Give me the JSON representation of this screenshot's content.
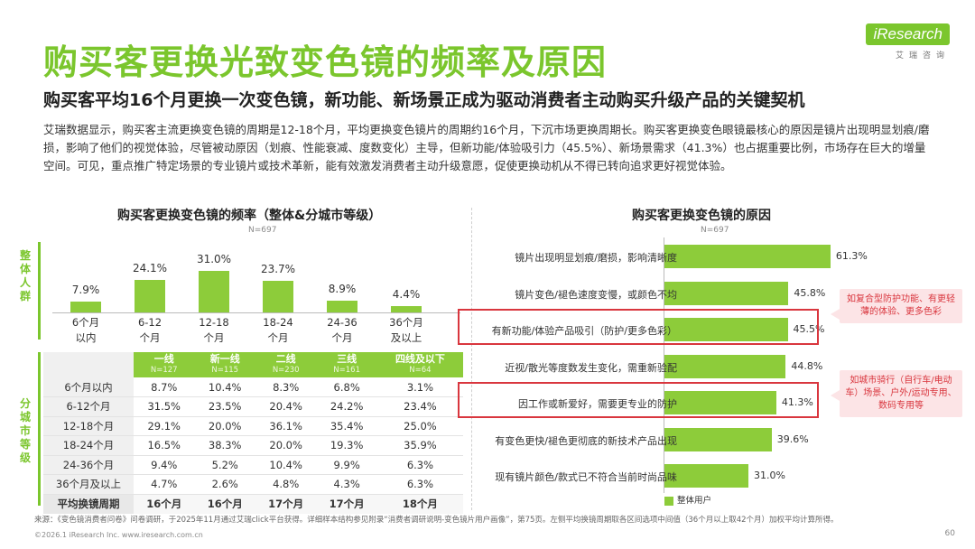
{
  "header": {
    "title": "购买客更换光致变色镜的频率及原因",
    "subtitle": "购买客平均16个月更换一次变色镜，新功能、新场景正成为驱动消费者主动购买升级产品的关键契机",
    "intro": "艾瑞数据显示，购买客主流更换变色镜的周期是12-18个月，平均更换变色镜片的周期约16个月，下沉市场更换周期长。购买客更换变色眼镜最核心的原因是镜片出现明显划痕/磨损，影响了他们的视觉体验，尽管被动原因（划痕、性能衰减、度数变化）主导，但新功能/体验吸引力（45.5%）、新场景需求（41.3%）也占据重要比例，市场存在巨大的增量空间。可见，重点推广特定场景的专业镜片或技术革新，能有效激发消费者主动升级意愿，促使更换动机从不得已转向追求更好视觉体验。"
  },
  "logo": {
    "text": "iResearch",
    "sub": "艾瑞咨询"
  },
  "chart_data": [
    {
      "type": "bar",
      "title": "购买客更换变色镜的频率（整体&分城市等级）",
      "note": "N=697",
      "group_label": "整体人群",
      "categories": [
        "6个月\n以内",
        "6-12\n个月",
        "12-18\n个月",
        "18-24\n个月",
        "24-36\n个月",
        "36个月\n及以上"
      ],
      "values": [
        7.9,
        24.1,
        31.0,
        23.7,
        8.9,
        4.4
      ],
      "value_labels": [
        "7.9%",
        "24.1%",
        "31.0%",
        "23.7%",
        "8.9%",
        "4.4%"
      ],
      "ylim": [
        0,
        35
      ],
      "color": "#8dcc3a"
    },
    {
      "type": "table",
      "group_label": "分城市等级",
      "columns": [
        {
          "name": "一线",
          "n": "N=127"
        },
        {
          "name": "新一线",
          "n": "N=115"
        },
        {
          "name": "二线",
          "n": "N=230"
        },
        {
          "name": "三线",
          "n": "N=161"
        },
        {
          "name": "四线及以下",
          "n": "N=64"
        }
      ],
      "rows": [
        {
          "label": "6个月以内",
          "values": [
            "8.7%",
            "10.4%",
            "8.3%",
            "6.8%",
            "3.1%"
          ]
        },
        {
          "label": "6-12个月",
          "values": [
            "31.5%",
            "23.5%",
            "20.4%",
            "24.2%",
            "23.4%"
          ]
        },
        {
          "label": "12-18个月",
          "values": [
            "29.1%",
            "20.0%",
            "36.1%",
            "35.4%",
            "25.0%"
          ]
        },
        {
          "label": "18-24个月",
          "values": [
            "16.5%",
            "38.3%",
            "20.0%",
            "19.3%",
            "35.9%"
          ]
        },
        {
          "label": "24-36个月",
          "values": [
            "9.4%",
            "5.2%",
            "10.4%",
            "9.9%",
            "6.3%"
          ]
        },
        {
          "label": "36个月及以上",
          "values": [
            "4.7%",
            "2.6%",
            "4.8%",
            "4.3%",
            "6.3%"
          ]
        }
      ],
      "summary_row": {
        "label": "平均换镜周期",
        "values": [
          "16个月",
          "16个月",
          "17个月",
          "17个月",
          "18个月"
        ]
      }
    },
    {
      "type": "bar",
      "orientation": "horizontal",
      "title": "购买客更换变色镜的原因",
      "note": "N=697",
      "categories": [
        "镜片出现明显划痕/磨损，影响清晰度",
        "镜片变色/褪色速度变慢，或颜色不均",
        "有新功能/体验产品吸引（防护/更多色彩）",
        "近视/散光等度数发生变化，需重新验配",
        "因工作或新爱好，需要更专业的防护",
        "有变色更快/褪色更彻底的新技术产品出现",
        "现有镜片颜色/款式已不符合当前时尚品味"
      ],
      "values": [
        61.3,
        45.8,
        45.5,
        44.8,
        41.3,
        39.6,
        31.0
      ],
      "value_labels": [
        "61.3%",
        "45.8%",
        "45.5%",
        "44.8%",
        "41.3%",
        "39.6%",
        "31.0%"
      ],
      "series": [
        {
          "name": "整体用户",
          "values": [
            61.3,
            45.8,
            45.5,
            44.8,
            41.3,
            39.6,
            31.0
          ]
        }
      ],
      "legend": "bottom-left",
      "highlighted": [
        2,
        4
      ],
      "color": "#8dcc3a"
    }
  ],
  "callouts": [
    "如复合型防护功能、有更轻薄的体验、更多色彩",
    "如城市骑行（自行车/电动车）场景、户外/运动专用、数码专用等"
  ],
  "footer": {
    "source": "来源：《变色镜消费者问卷》问卷调研，于2025年11月通过艾瑞click平台获得。详细样本结构参见附录“消费者调研说明-变色镜片用户画像”，第75页。左侧平均换镜周期取各区间选项中间值（36个月以上取42个月）加权平均计算所得。",
    "copyright": "©2026.1 iResearch Inc.                    www.iresearch.com.cn",
    "page": "60"
  }
}
